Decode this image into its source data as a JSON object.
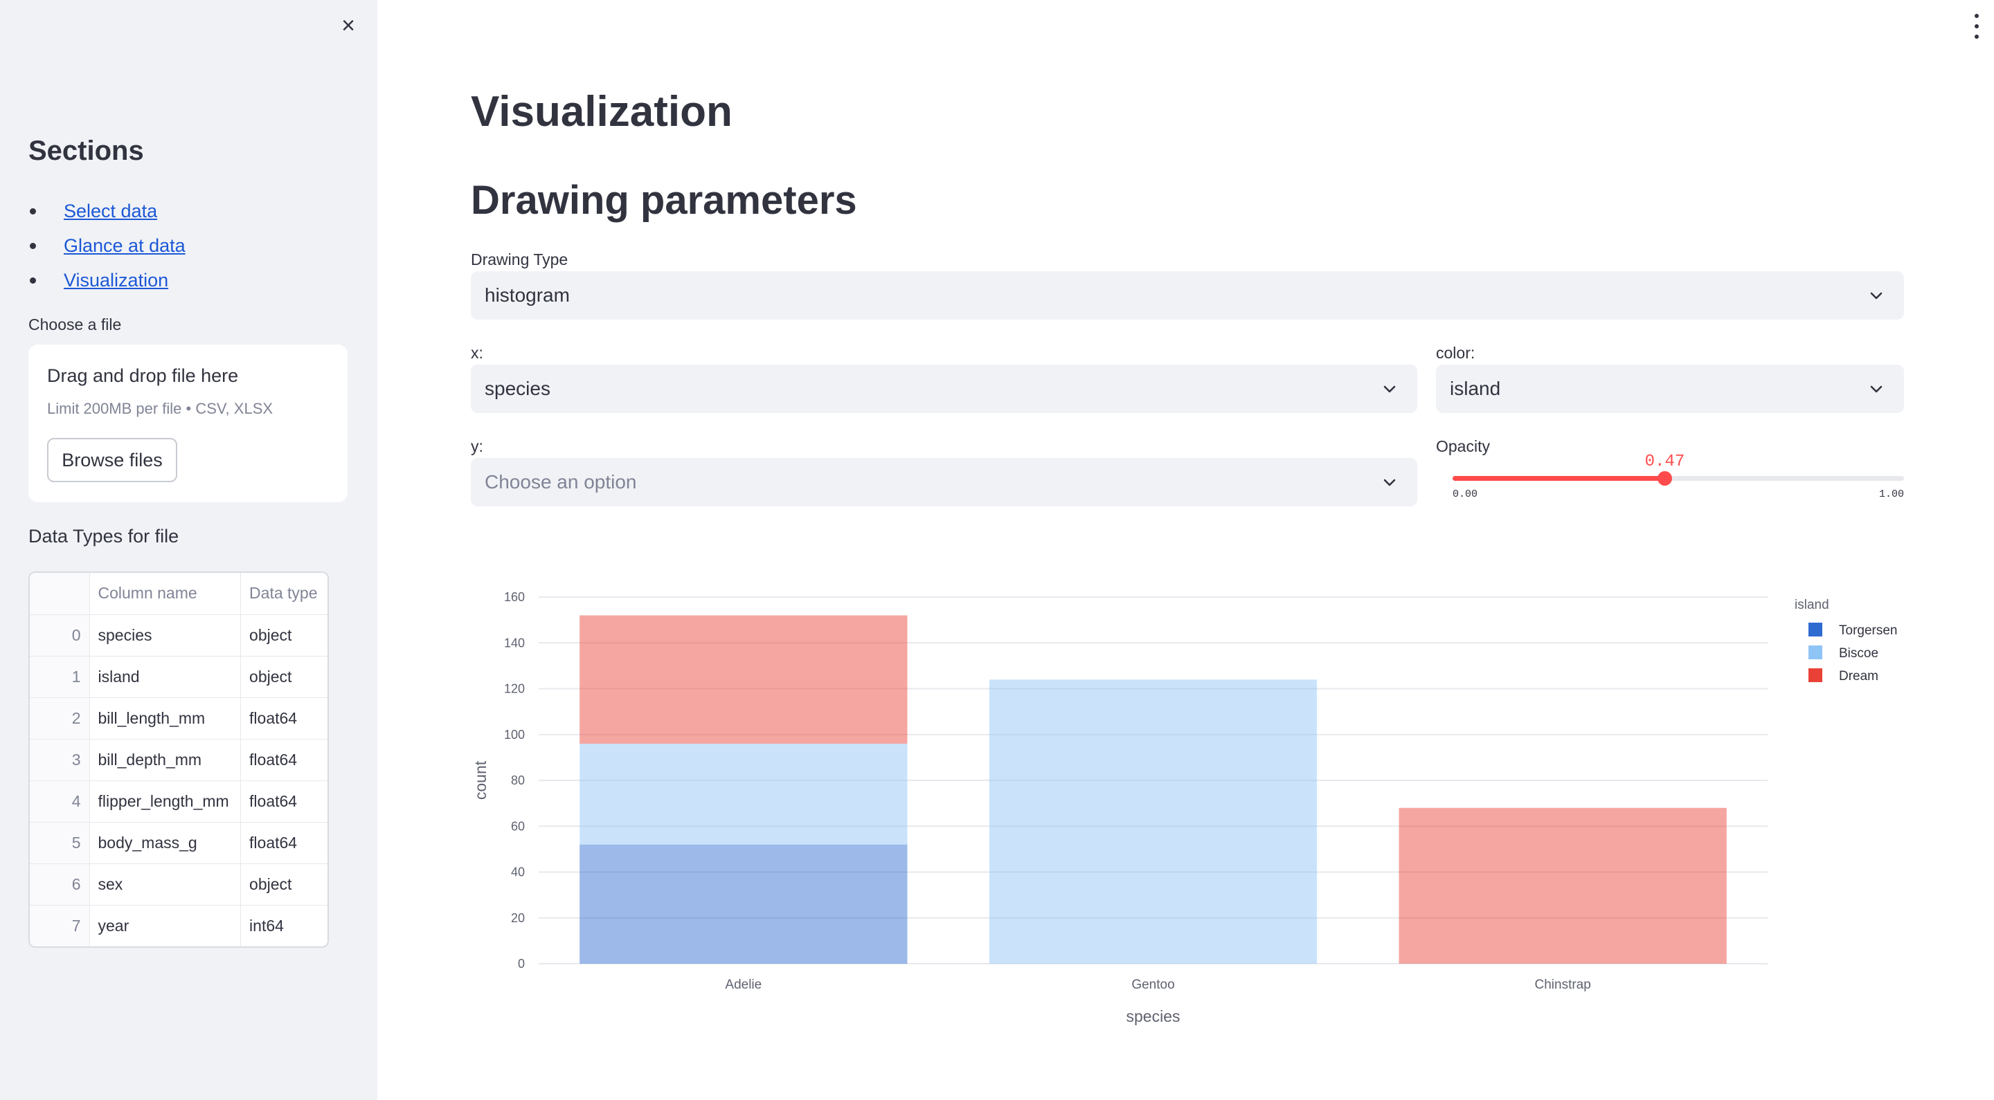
{
  "sidebar": {
    "close_icon": "close-icon",
    "heading": "Sections",
    "links": [
      "Select data",
      "Glance at data",
      "Visualization"
    ],
    "file_label": "Choose a file",
    "dropzone": {
      "title": "Drag and drop file here",
      "subtitle": "Limit 200MB per file • CSV, XLSX",
      "browse_label": "Browse files"
    },
    "dtypes_label": "Data Types for file",
    "dtypes_table": {
      "columns": [
        "Column name",
        "Data type"
      ],
      "rows": [
        {
          "index": "0",
          "name": "species",
          "type": "object"
        },
        {
          "index": "1",
          "name": "island",
          "type": "object"
        },
        {
          "index": "2",
          "name": "bill_length_mm",
          "type": "float64"
        },
        {
          "index": "3",
          "name": "bill_depth_mm",
          "type": "float64"
        },
        {
          "index": "4",
          "name": "flipper_length_mm",
          "type": "float64"
        },
        {
          "index": "5",
          "name": "body_mass_g",
          "type": "float64"
        },
        {
          "index": "6",
          "name": "sex",
          "type": "object"
        },
        {
          "index": "7",
          "name": "year",
          "type": "int64"
        }
      ]
    }
  },
  "main": {
    "menu_icon": "kebab-menu-icon",
    "title": "Visualization",
    "subtitle": "Drawing parameters",
    "drawing_type": {
      "label": "Drawing Type",
      "value": "histogram"
    },
    "x": {
      "label": "x:",
      "value": "species"
    },
    "color": {
      "label": "color:",
      "value": "island"
    },
    "y": {
      "label": "y:",
      "placeholder": "Choose an option"
    },
    "opacity": {
      "label": "Opacity",
      "value": 0.47,
      "value_label": "0.47",
      "min": "0.00",
      "max": "1.00"
    },
    "accent_color": "#ff4b4b"
  },
  "chart_data": {
    "type": "bar",
    "stacked": true,
    "categories": [
      "Adelie",
      "Gentoo",
      "Chinstrap"
    ],
    "series": [
      {
        "name": "Torgersen",
        "color": "#2e6bd1",
        "values": [
          52,
          0,
          0
        ]
      },
      {
        "name": "Biscoe",
        "color": "#8fc4f7",
        "values": [
          44,
          124,
          0
        ]
      },
      {
        "name": "Dream",
        "color": "#ea4137",
        "values": [
          56,
          0,
          68
        ]
      }
    ],
    "xlabel": "species",
    "ylabel": "count",
    "ylim": [
      0,
      160
    ],
    "yticks": [
      0,
      20,
      40,
      60,
      80,
      100,
      120,
      140,
      160
    ],
    "legend_title": "island",
    "legend_position": "top-right",
    "grid": true
  }
}
